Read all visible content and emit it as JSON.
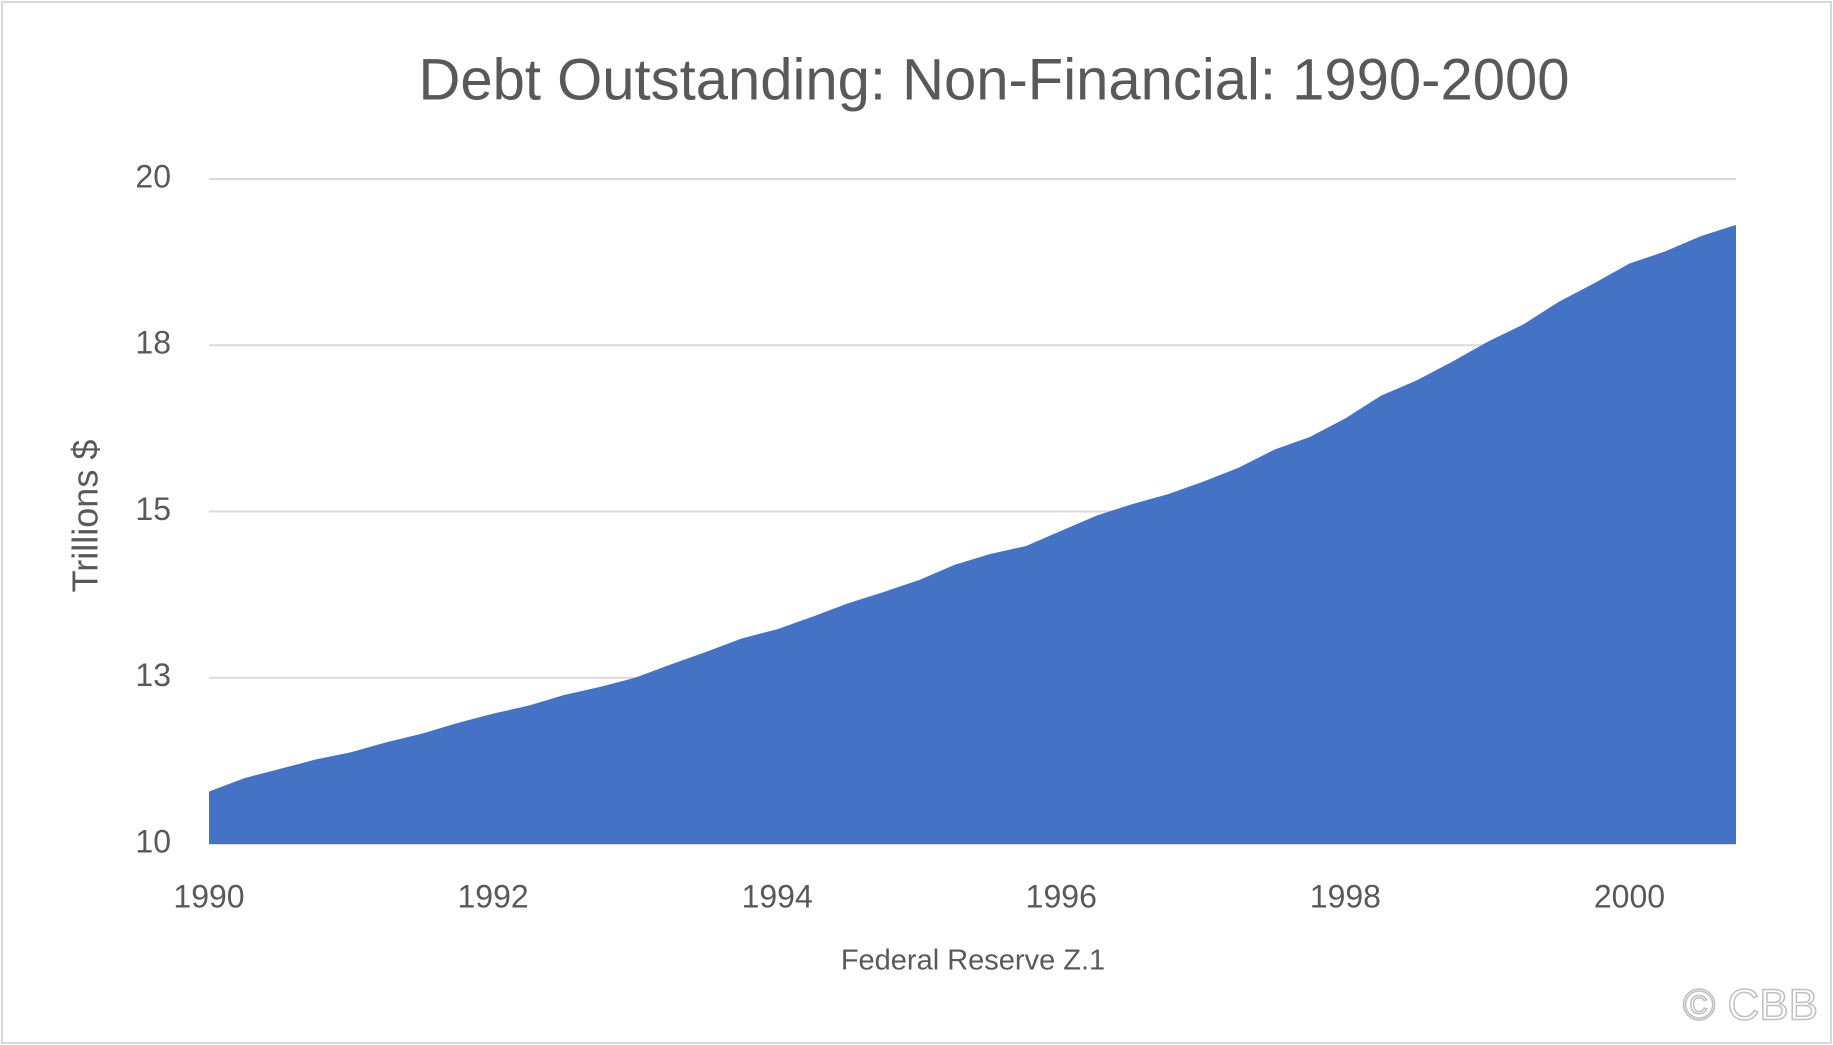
{
  "chart_data": {
    "type": "area",
    "title": "Debt Outstanding: Non-Financial: 1990-2000",
    "x_label": "Federal Reserve Z.1",
    "y_label": "Trillions $",
    "watermark": "© CBB",
    "x": [
      1990,
      1990.25,
      1990.5,
      1990.75,
      1991,
      1991.25,
      1991.5,
      1991.75,
      1992,
      1992.25,
      1992.5,
      1992.75,
      1993,
      1993.25,
      1993.5,
      1993.75,
      1994,
      1994.25,
      1994.5,
      1994.75,
      1995,
      1995.25,
      1995.5,
      1995.75,
      1996,
      1996.25,
      1996.5,
      1996.75,
      1997,
      1997.25,
      1997.5,
      1997.75,
      1998,
      1998.25,
      1998.5,
      1998.75,
      1999,
      1999.25,
      1999.5,
      1999.75,
      2000,
      2000.25,
      2000.5,
      2000.75
    ],
    "series": [
      {
        "name": "Debt Outstanding",
        "color": "#4472c4",
        "values": [
          10.79,
          10.99,
          11.13,
          11.27,
          11.38,
          11.53,
          11.66,
          11.82,
          11.96,
          12.08,
          12.24,
          12.36,
          12.5,
          12.7,
          12.89,
          13.09,
          13.23,
          13.42,
          13.62,
          13.79,
          13.97,
          14.2,
          14.36,
          14.48,
          14.71,
          14.94,
          15.11,
          15.26,
          15.45,
          15.66,
          15.93,
          16.12,
          16.4,
          16.74,
          16.97,
          17.25,
          17.55,
          17.81,
          18.15,
          18.43,
          18.73,
          18.91,
          19.14,
          19.31
        ]
      }
    ],
    "xlim": [
      1990,
      2000.75
    ],
    "xticks": [
      1990,
      1992,
      1994,
      1996,
      1998,
      2000
    ],
    "ylim": [
      10,
      20
    ],
    "yticks": [
      10,
      {
        "value": 12.5,
        "label": "13"
      },
      15,
      {
        "value": 17.5,
        "label": "18"
      },
      20
    ],
    "grid": true
  }
}
